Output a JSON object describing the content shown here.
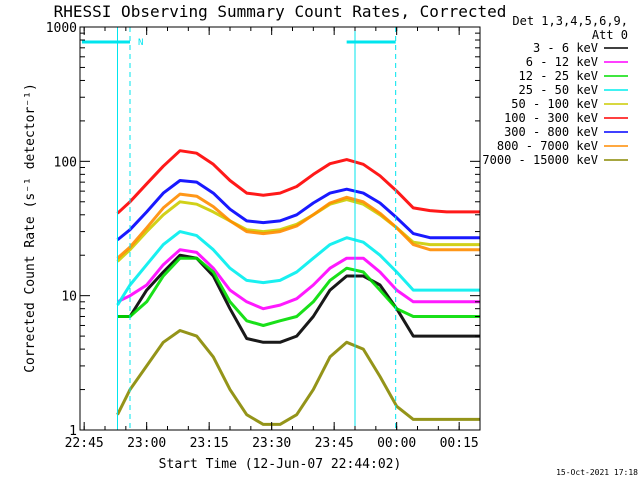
{
  "chart_data": {
    "type": "line",
    "title": "RHESSI Observing Summary Count Rates, Corrected",
    "xlabel": "Start Time (12-Jun-07 22:44:02)",
    "ylabel": "Corrected Count Rate (s⁻¹ detector⁻¹)",
    "yscale": "log",
    "xlim_minutes_from_start": [
      0,
      96
    ],
    "ylim": [
      1,
      1000
    ],
    "x_tick_labels": [
      "22:45",
      "23:00",
      "23:15",
      "23:30",
      "23:45",
      "00:00",
      "00:15"
    ],
    "x_tick_minutes": [
      1,
      16,
      31,
      46,
      61,
      76,
      91
    ],
    "y_tick_labels": [
      "1",
      "10",
      "100",
      "1000"
    ],
    "y_tick_values": [
      1,
      10,
      100,
      1000
    ],
    "legend_header": [
      "Det 1,3,4,5,6,9,",
      "Att 0"
    ],
    "legend_position": "right",
    "footer_timestamp": "15-Oct-2021 17:18",
    "night_marker": "N",
    "saa_night_intervals": [
      [
        0,
        12
      ],
      [
        64,
        76
      ]
    ],
    "data_gaps_minutes": [
      [
        0,
        9
      ],
      [
        66,
        76
      ]
    ],
    "x_sample_minutes": [
      9,
      12,
      16,
      20,
      24,
      28,
      32,
      36,
      40,
      44,
      48,
      52,
      56,
      60,
      64,
      68,
      72,
      76,
      80,
      84,
      88,
      92,
      96
    ],
    "series": [
      {
        "name": "3 - 6 keV",
        "color": "#000000",
        "values": [
          7,
          7,
          11,
          15,
          20,
          19,
          14,
          8,
          4.8,
          4.5,
          4.5,
          5,
          7,
          11,
          14,
          14,
          12,
          8,
          5,
          5,
          5,
          5,
          5
        ]
      },
      {
        "name": "6 - 12 keV",
        "color": "#ff00ff",
        "values": [
          9,
          10,
          12,
          17,
          22,
          21,
          16,
          11,
          9,
          8,
          8.5,
          9.5,
          12,
          16,
          19,
          19,
          15,
          11,
          9,
          9,
          9,
          9,
          9
        ]
      },
      {
        "name": "12 - 25 keV",
        "color": "#00dd00",
        "values": [
          7,
          7,
          9,
          14,
          19,
          19,
          15,
          9,
          6.5,
          6,
          6.5,
          7,
          9,
          13,
          16,
          15,
          11,
          8,
          7,
          7,
          7,
          7,
          7
        ]
      },
      {
        "name": "25 - 50 keV",
        "color": "#00eeee",
        "values": [
          8.5,
          12,
          17,
          24,
          30,
          28,
          22,
          16,
          13,
          12.5,
          13,
          15,
          19,
          24,
          27,
          25,
          20,
          15,
          11,
          11,
          11,
          11,
          11
        ]
      },
      {
        "name": "50 - 100 keV",
        "color": "#cccc00",
        "values": [
          18,
          22,
          30,
          40,
          50,
          48,
          42,
          36,
          31,
          30,
          31,
          34,
          40,
          48,
          52,
          48,
          40,
          32,
          25,
          24,
          24,
          24,
          24
        ]
      },
      {
        "name": "100 - 300 keV",
        "color": "#ff0000",
        "values": [
          41,
          50,
          68,
          92,
          120,
          115,
          95,
          72,
          58,
          56,
          58,
          65,
          80,
          96,
          103,
          95,
          78,
          60,
          45,
          43,
          42,
          42,
          42
        ]
      },
      {
        "name": "300 - 800 keV",
        "color": "#0000ff",
        "values": [
          26,
          31,
          42,
          58,
          72,
          70,
          58,
          44,
          36,
          35,
          36,
          40,
          49,
          58,
          62,
          58,
          49,
          38,
          29,
          27,
          27,
          27,
          27
        ]
      },
      {
        "name": "800 - 7000 keV",
        "color": "#ff8c00",
        "values": [
          19,
          23,
          32,
          45,
          57,
          55,
          46,
          36,
          30,
          29,
          30,
          33,
          40,
          49,
          54,
          50,
          41,
          32,
          24,
          22,
          22,
          22,
          22
        ]
      },
      {
        "name": "7000 - 15000 keV",
        "color": "#888800",
        "values": [
          1.3,
          2,
          3,
          4.5,
          5.5,
          5,
          3.5,
          2,
          1.3,
          1.1,
          1.1,
          1.3,
          2,
          3.5,
          4.5,
          4,
          2.5,
          1.5,
          1.2,
          1.2,
          1.2,
          1.2,
          1.2
        ]
      }
    ]
  }
}
